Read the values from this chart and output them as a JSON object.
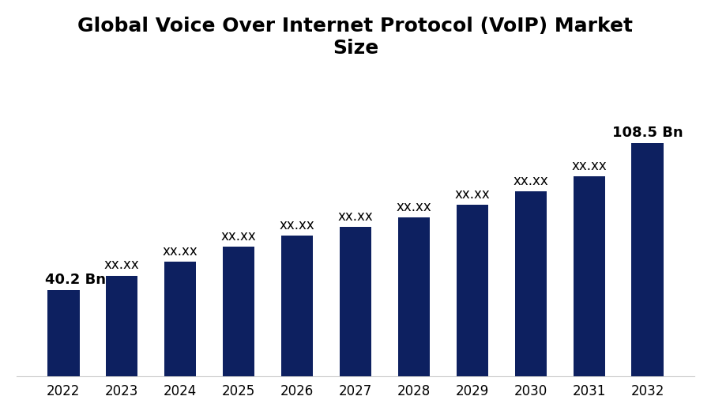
{
  "title": "Global Voice Over Internet Protocol (VoIP) Market\nSize",
  "categories": [
    "2022",
    "2023",
    "2024",
    "2025",
    "2026",
    "2027",
    "2028",
    "2029",
    "2030",
    "2031",
    "2032"
  ],
  "values": [
    40.2,
    47.0,
    53.5,
    60.5,
    65.5,
    69.5,
    74.0,
    80.0,
    86.0,
    93.0,
    108.5
  ],
  "bar_color": "#0d2060",
  "label_2022": "40.2 Bn",
  "label_2032": "108.5 Bn",
  "label_others": "xx.xx",
  "background_color": "#ffffff",
  "title_fontsize": 18,
  "label_fontsize": 12,
  "tick_fontsize": 12,
  "bar_width": 0.55,
  "ylim": [
    0,
    140
  ]
}
